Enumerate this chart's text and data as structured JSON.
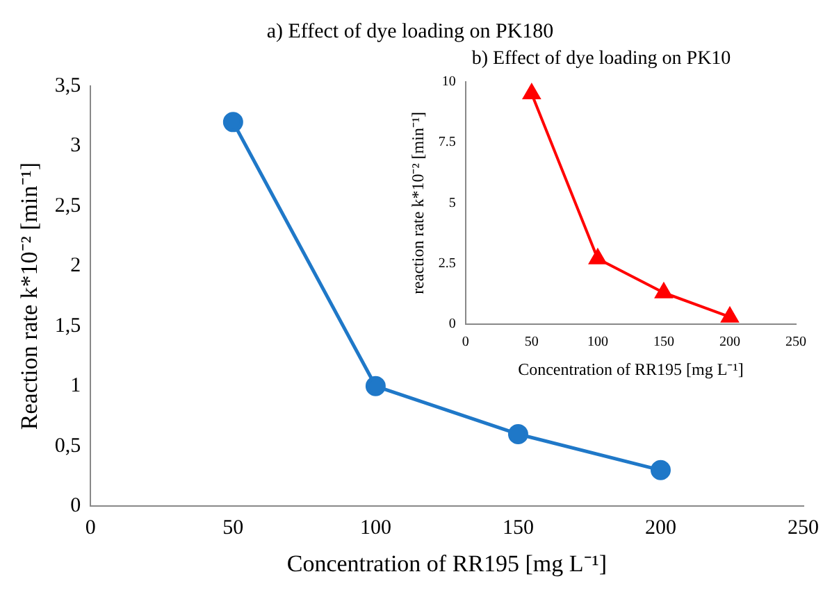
{
  "chart_data": [
    {
      "type": "line",
      "title": "a) Effect of dye loading on PK180",
      "xlabel": "Concentration of RR195 [mg L⁻¹]",
      "ylabel": "Reaction rate k*10⁻² [min⁻¹]",
      "x": [
        50,
        100,
        150,
        200
      ],
      "series": [
        {
          "color": "#1f78c8",
          "values": [
            3.2,
            1.0,
            0.6,
            0.3
          ]
        }
      ],
      "xlim": [
        0,
        250
      ],
      "xticks": [
        0,
        50,
        100,
        150,
        200,
        250
      ],
      "ylim": [
        0,
        3.5
      ],
      "yticks": [
        0,
        {
          "value": 0.5,
          "label": "0,5"
        },
        1,
        {
          "value": 1.5,
          "label": "1,5"
        },
        2,
        {
          "value": 2.5,
          "label": "2,5"
        },
        3,
        {
          "value": 3.5,
          "label": "3,5"
        }
      ],
      "grid": false,
      "legend": false,
      "marker": "circle",
      "line_style": "solid"
    },
    {
      "type": "line",
      "title": "b) Effect of dye loading on PK10",
      "xlabel": "Concentration of RR195 [mg L⁻¹]",
      "ylabel": "reaction rate k*10⁻² [min⁻¹]",
      "x": [
        50,
        100,
        150,
        200
      ],
      "series": [
        {
          "color": "#ff0000",
          "values": [
            9.5,
            2.7,
            1.3,
            0.3
          ]
        }
      ],
      "xlim": [
        0,
        250
      ],
      "xticks": [
        0,
        50,
        100,
        150,
        200,
        250
      ],
      "ylim": [
        0,
        10
      ],
      "yticks": [
        0,
        2.5,
        5,
        7.5,
        10
      ],
      "grid": false,
      "legend": false,
      "marker": "triangle",
      "line_style": "solid"
    }
  ]
}
